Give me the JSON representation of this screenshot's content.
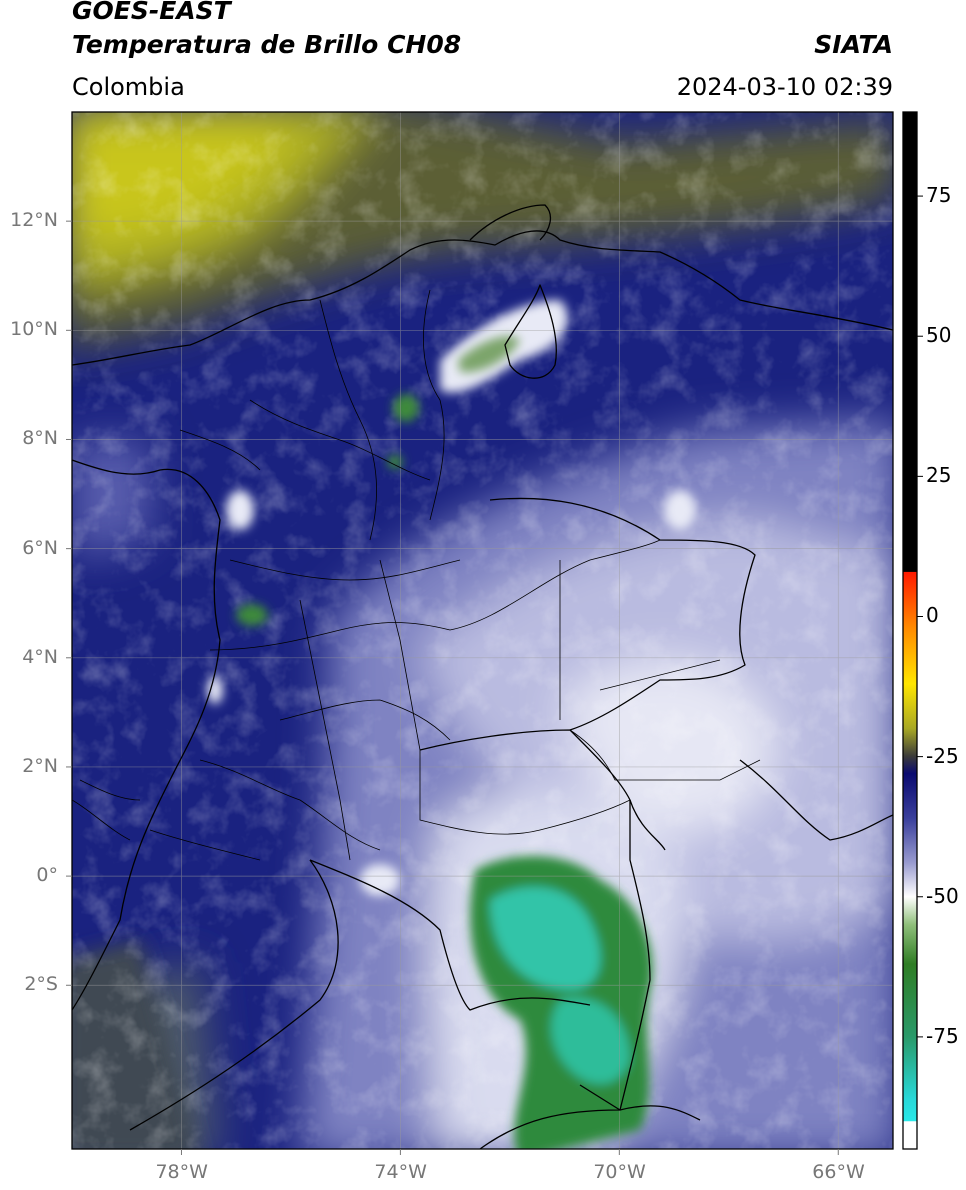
{
  "header": {
    "satellite": "GOES-EAST",
    "product": "Temperatura de Brillo CH08",
    "region": "Colombia",
    "institution": "SIATA",
    "datetime": "2024-03-10 02:39"
  },
  "map": {
    "lon_range": [
      -80,
      -65
    ],
    "lat_range": [
      -5,
      14
    ],
    "lat_ticks": [
      {
        "value": 12,
        "label": "12°N"
      },
      {
        "value": 10,
        "label": "10°N"
      },
      {
        "value": 8,
        "label": "8°N"
      },
      {
        "value": 6,
        "label": "6°N"
      },
      {
        "value": 4,
        "label": "4°N"
      },
      {
        "value": 2,
        "label": "2°N"
      },
      {
        "value": 0,
        "label": "0°"
      },
      {
        "value": -2,
        "label": "2°S"
      }
    ],
    "lon_ticks": [
      {
        "value": -78,
        "label": "78°W"
      },
      {
        "value": -74,
        "label": "74°W"
      },
      {
        "value": -70,
        "label": "70°W"
      },
      {
        "value": -66,
        "label": "66°W"
      }
    ],
    "grid": true,
    "colors": {
      "background_deep_blue": "#16207a",
      "mid_blue": "#3a3f9c",
      "light_lavender": "#8e92c9",
      "pale": "#e3e4f2",
      "olive_yellow": "#b5b41a",
      "olive_gray": "#4f5430",
      "green": "#3a8a3a",
      "teal": "#2cc4a8",
      "border": "#000000"
    }
  },
  "colorbar": {
    "range": [
      -95,
      90
    ],
    "ticks": [
      {
        "value": 75,
        "label": "75"
      },
      {
        "value": 50,
        "label": "50"
      },
      {
        "value": 25,
        "label": "25"
      },
      {
        "value": 0,
        "label": "0"
      },
      {
        "value": -25,
        "label": "-25"
      },
      {
        "value": -50,
        "label": "-50"
      },
      {
        "value": -75,
        "label": "-75"
      }
    ],
    "stops": [
      {
        "value": 90,
        "color": "#000000"
      },
      {
        "value": 8,
        "color": "#000000"
      },
      {
        "value": 7.9,
        "color": "#ff1a00"
      },
      {
        "value": -2,
        "color": "#ff8a00"
      },
      {
        "value": -12,
        "color": "#ffe600"
      },
      {
        "value": -20,
        "color": "#a8a824"
      },
      {
        "value": -25,
        "color": "#3a3a3a"
      },
      {
        "value": -28,
        "color": "#0a0a70"
      },
      {
        "value": -36,
        "color": "#3a3f9c"
      },
      {
        "value": -44,
        "color": "#9a9cd0"
      },
      {
        "value": -50,
        "color": "#ffffff"
      },
      {
        "value": -55,
        "color": "#8fbf7a"
      },
      {
        "value": -62,
        "color": "#2f7d24"
      },
      {
        "value": -75,
        "color": "#2a9a6a"
      },
      {
        "value": -86,
        "color": "#28d8d8"
      },
      {
        "value": -90,
        "color": "#28e8e8"
      },
      {
        "value": -90.1,
        "color": "#ffffff"
      },
      {
        "value": -95,
        "color": "#ffffff"
      }
    ]
  }
}
